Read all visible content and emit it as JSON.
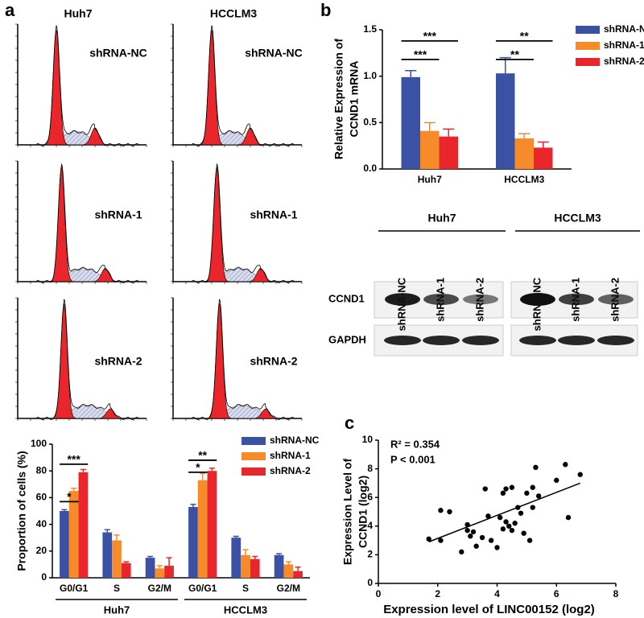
{
  "panel_labels": [
    "a",
    "b",
    "c"
  ],
  "flow_cytometry": {
    "columns": [
      "Huh7",
      "HCCLM3"
    ],
    "rows": [
      "shRNA-NC",
      "shRNA-1",
      "shRNA-2"
    ]
  },
  "western_blot": {
    "groups": [
      "Huh7",
      "HCCLM3"
    ],
    "lanes": [
      "shRNA-NC",
      "shRNA-1",
      "shRNA-2",
      "shRNA-NC",
      "shRNA-1",
      "shRNA-2"
    ],
    "rows": [
      "CCND1",
      "GAPDH"
    ]
  },
  "chart_data": [
    {
      "type": "bar",
      "y_label": "Proportion of cells (%)",
      "categories": [
        "G0/G1",
        "S",
        "G2/M",
        "G0/G1",
        "S",
        "G2/M"
      ],
      "groups": [
        "Huh7",
        "HCCLM3"
      ],
      "ylim": [
        0,
        100
      ],
      "yticks": [
        0,
        20,
        40,
        60,
        80,
        100
      ],
      "series": [
        {
          "name": "shRNA-NC",
          "color": "#3b51a3",
          "values": [
            50,
            34,
            15,
            53,
            30,
            17
          ],
          "errors": [
            1,
            2,
            1,
            2,
            1,
            1
          ]
        },
        {
          "name": "shRNA-1",
          "color": "#f68b2b",
          "values": [
            65,
            28,
            7,
            73,
            17,
            10
          ],
          "errors": [
            2,
            4,
            2,
            5,
            4,
            2
          ]
        },
        {
          "name": "shRNA-2",
          "color": "#e8262b",
          "values": [
            79,
            11,
            9,
            80,
            14,
            5
          ],
          "errors": [
            2,
            1,
            6,
            2,
            2,
            3
          ]
        }
      ],
      "annotations": [
        "*",
        "***",
        "*",
        "**"
      ]
    },
    {
      "type": "bar",
      "y_label": [
        "Relative  Expression of",
        "CCND1 mRNA"
      ],
      "categories": [
        "Huh7",
        "HCCLM3"
      ],
      "ylim": [
        0,
        1.5
      ],
      "yticks": [
        {
          "value": 0,
          "label": "0.0"
        },
        0.5,
        {
          "value": 1,
          "label": "1.0"
        },
        1.5
      ],
      "series": [
        {
          "name": "shRNA-NC",
          "color": "#3b51a3",
          "values": [
            0.99,
            1.03
          ],
          "errors": [
            0.07,
            0.17
          ]
        },
        {
          "name": "shRNA-1",
          "color": "#f68b2b",
          "values": [
            0.41,
            0.33
          ],
          "errors": [
            0.09,
            0.05
          ]
        },
        {
          "name": "shRNA-2",
          "color": "#e8262b",
          "values": [
            0.35,
            0.23
          ],
          "errors": [
            0.08,
            0.06
          ]
        }
      ],
      "annotations": [
        "***",
        "***",
        "**",
        "**"
      ]
    },
    {
      "type": "scatter",
      "x_label": "Expression level of LINC00152 (log2)",
      "y_label": [
        "Expression Level of",
        "CCND1 (log2)"
      ],
      "xlim": [
        0,
        8
      ],
      "xticks": [
        0,
        2,
        4,
        6,
        8
      ],
      "ylim": [
        0,
        10
      ],
      "yticks": [
        0,
        2,
        4,
        6,
        8,
        10
      ],
      "x": [
        1.7,
        2.1,
        2.1,
        2.4,
        2.8,
        3.0,
        3.0,
        3.1,
        3.2,
        3.3,
        3.5,
        3.6,
        3.7,
        3.8,
        4.0,
        4.1,
        4.2,
        4.2,
        4.3,
        4.3,
        4.4,
        4.5,
        4.5,
        4.6,
        4.7,
        4.8,
        4.9,
        5.0,
        5.1,
        5.2,
        5.2,
        5.3,
        5.4,
        6.0,
        6.3,
        6.4,
        6.8
      ],
      "y": [
        3.1,
        5.1,
        3.0,
        5.0,
        2.2,
        4.1,
        3.7,
        3.3,
        3.6,
        2.6,
        3.2,
        6.6,
        4.7,
        3.0,
        2.5,
        4.6,
        6.3,
        3.8,
        6.6,
        4.3,
        4.0,
        6.7,
        3.7,
        4.2,
        5.3,
        4.9,
        3.5,
        6.3,
        3.0,
        5.3,
        6.7,
        8.1,
        6.1,
        7.2,
        8.3,
        4.6,
        7.6
      ],
      "trendline": {
        "x": [
          1.7,
          6.8
        ],
        "y": [
          2.9,
          7.0
        ]
      },
      "annotations": [
        "R² = 0.354",
        "P < 0.001"
      ]
    }
  ]
}
